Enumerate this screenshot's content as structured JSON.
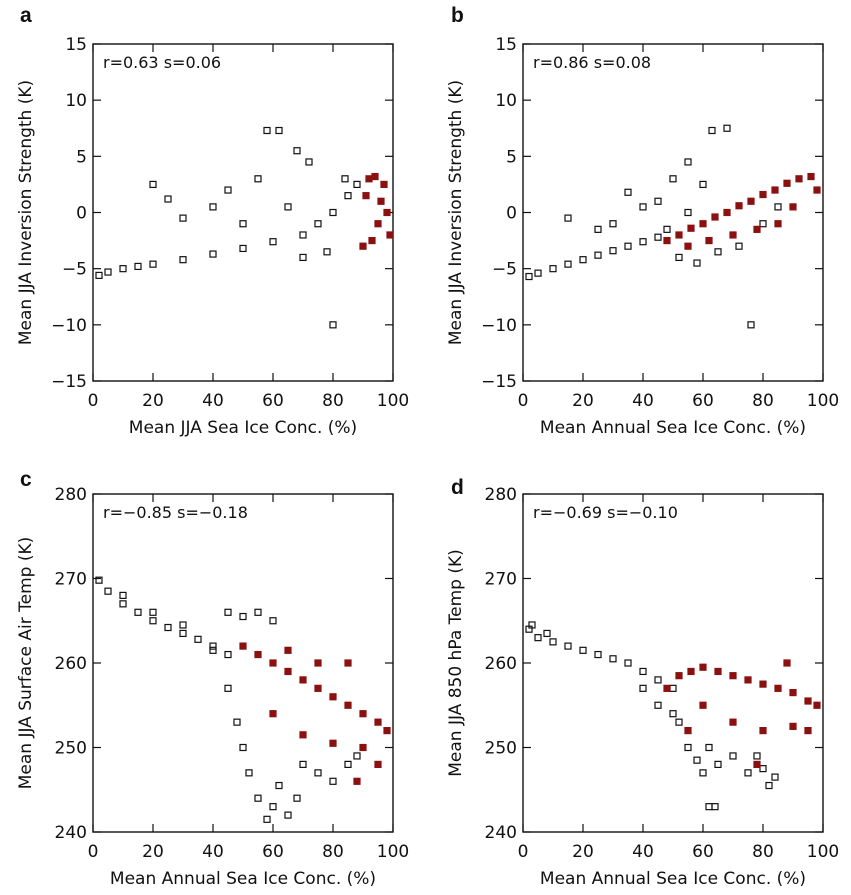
{
  "chart_data": [
    {
      "panel": "a",
      "type": "scatter",
      "stats": "r=0.63   s=0.06",
      "xlabel": "Mean JJA Sea Ice Conc. (%)",
      "ylabel": "Mean JJA Inversion Strength (K)",
      "xlim": [
        0,
        100
      ],
      "ylim": [
        -15,
        15
      ],
      "xticks": [
        "0",
        "20",
        "40",
        "60",
        "80",
        "100"
      ],
      "yticks": [
        "-15",
        "-10",
        "-5",
        "0",
        "5",
        "10",
        "15"
      ],
      "colors": {
        "main": "#111111",
        "highlight": "#8b1010"
      },
      "series": [
        {
          "values": [
            [
              2,
              -5.6
            ],
            [
              5,
              -5.3
            ],
            [
              10,
              -5.0
            ],
            [
              15,
              -4.8
            ],
            [
              20,
              -4.6
            ],
            [
              30,
              -4.2
            ],
            [
              40,
              -3.7
            ],
            [
              50,
              -3.2
            ],
            [
              60,
              -2.6
            ],
            [
              70,
              -2.0
            ],
            [
              75,
              -1.0
            ],
            [
              80,
              0.0
            ],
            [
              85,
              1.5
            ],
            [
              88,
              2.5
            ],
            [
              20,
              2.5
            ],
            [
              25,
              1.2
            ],
            [
              30,
              -0.5
            ],
            [
              40,
              0.5
            ],
            [
              45,
              2.0
            ],
            [
              55,
              3.0
            ],
            [
              58,
              7.3
            ],
            [
              62,
              7.3
            ],
            [
              68,
              5.5
            ],
            [
              72,
              4.5
            ],
            [
              80,
              -10.0
            ],
            [
              50,
              -1.0
            ],
            [
              65,
              0.5
            ],
            [
              70,
              -4.0
            ],
            [
              78,
              -3.5
            ],
            [
              84,
              3.0
            ]
          ]
        },
        {
          "values": [
            [
              90,
              -3.0
            ],
            [
              92,
              3.0
            ],
            [
              95,
              -1.0
            ],
            [
              97,
              2.5
            ],
            [
              98,
              0.0
            ],
            [
              99,
              -2.0
            ],
            [
              96,
              1.0
            ],
            [
              93,
              -2.5
            ],
            [
              91,
              1.5
            ],
            [
              94,
              3.2
            ]
          ]
        }
      ]
    },
    {
      "panel": "b",
      "type": "scatter",
      "stats": "r=0.86   s=0.08",
      "xlabel": "Mean Annual Sea Ice Conc. (%)",
      "ylabel": "Mean JJA Inversion Strength (K)",
      "xlim": [
        0,
        100
      ],
      "ylim": [
        -15,
        15
      ],
      "xticks": [
        "0",
        "20",
        "40",
        "60",
        "80",
        "100"
      ],
      "yticks": [
        "-15",
        "-10",
        "-5",
        "0",
        "5",
        "10",
        "15"
      ],
      "colors": {
        "main": "#111111",
        "highlight": "#8b1010"
      },
      "series": [
        {
          "values": [
            [
              2,
              -5.7
            ],
            [
              5,
              -5.4
            ],
            [
              10,
              -5.0
            ],
            [
              15,
              -4.6
            ],
            [
              20,
              -4.2
            ],
            [
              25,
              -3.8
            ],
            [
              30,
              -3.4
            ],
            [
              35,
              -3.0
            ],
            [
              40,
              -2.6
            ],
            [
              45,
              -2.2
            ],
            [
              15,
              -0.5
            ],
            [
              25,
              -1.5
            ],
            [
              30,
              -1.0
            ],
            [
              35,
              1.8
            ],
            [
              40,
              0.5
            ],
            [
              45,
              1.0
            ],
            [
              50,
              3.0
            ],
            [
              52,
              -4.0
            ],
            [
              55,
              4.5
            ],
            [
              58,
              -4.5
            ],
            [
              60,
              2.5
            ],
            [
              63,
              7.3
            ],
            [
              65,
              -3.5
            ],
            [
              68,
              7.5
            ],
            [
              72,
              -3.0
            ],
            [
              76,
              -10.0
            ],
            [
              80,
              -1.0
            ],
            [
              85,
              0.5
            ],
            [
              55,
              0.0
            ],
            [
              48,
              -1.5
            ]
          ]
        },
        {
          "values": [
            [
              48,
              -2.5
            ],
            [
              52,
              -2.0
            ],
            [
              56,
              -1.4
            ],
            [
              60,
              -1.0
            ],
            [
              64,
              -0.4
            ],
            [
              68,
              0.0
            ],
            [
              72,
              0.6
            ],
            [
              76,
              1.0
            ],
            [
              80,
              1.6
            ],
            [
              84,
              2.0
            ],
            [
              88,
              2.6
            ],
            [
              92,
              3.0
            ],
            [
              96,
              3.2
            ],
            [
              98,
              2.0
            ],
            [
              90,
              0.5
            ],
            [
              85,
              -1.0
            ],
            [
              78,
              -1.5
            ],
            [
              70,
              -2.0
            ],
            [
              62,
              -2.5
            ],
            [
              55,
              -3.0
            ]
          ]
        }
      ]
    },
    {
      "panel": "c",
      "type": "scatter",
      "stats": "r=−0.85   s=−0.18",
      "xlabel": "Mean Annual Sea Ice Conc. (%)",
      "ylabel": "Mean JJA Surface Air Temp (K)",
      "xlim": [
        0,
        100
      ],
      "ylim": [
        240,
        280
      ],
      "xticks": [
        "0",
        "20",
        "40",
        "60",
        "80",
        "100"
      ],
      "yticks": [
        "240",
        "250",
        "260",
        "270",
        "280"
      ],
      "colors": {
        "main": "#111111",
        "highlight": "#8b1010"
      },
      "series": [
        {
          "values": [
            [
              2,
              269.8
            ],
            [
              5,
              268.5
            ],
            [
              10,
              267.0
            ],
            [
              15,
              266.0
            ],
            [
              20,
              265.0
            ],
            [
              25,
              264.2
            ],
            [
              30,
              263.5
            ],
            [
              35,
              262.8
            ],
            [
              40,
              262.0
            ],
            [
              45,
              261.0
            ],
            [
              10,
              268.0
            ],
            [
              20,
              266.0
            ],
            [
              30,
              264.5
            ],
            [
              40,
              261.5
            ],
            [
              45,
              257.0
            ],
            [
              48,
              253.0
            ],
            [
              50,
              250.0
            ],
            [
              52,
              247.0
            ],
            [
              55,
              244.0
            ],
            [
              58,
              241.5
            ],
            [
              60,
              243.0
            ],
            [
              62,
              245.5
            ],
            [
              65,
              242.0
            ],
            [
              68,
              244.0
            ],
            [
              70,
              248.0
            ],
            [
              75,
              247.0
            ],
            [
              80,
              246.0
            ],
            [
              85,
              248.0
            ],
            [
              88,
              249.0
            ],
            [
              60,
              265.0
            ],
            [
              55,
              266.0
            ],
            [
              50,
              265.5
            ],
            [
              45,
              266.0
            ]
          ]
        },
        {
          "values": [
            [
              50,
              262.0
            ],
            [
              55,
              261.0
            ],
            [
              60,
              260.0
            ],
            [
              65,
              259.0
            ],
            [
              70,
              258.0
            ],
            [
              75,
              257.0
            ],
            [
              80,
              256.0
            ],
            [
              85,
              255.0
            ],
            [
              90,
              254.0
            ],
            [
              95,
              253.0
            ],
            [
              98,
              252.0
            ],
            [
              60,
              254.0
            ],
            [
              70,
              251.5
            ],
            [
              80,
              250.5
            ],
            [
              90,
              250.0
            ],
            [
              85,
              260.0
            ],
            [
              75,
              260.0
            ],
            [
              65,
              261.5
            ],
            [
              95,
              248.0
            ],
            [
              88,
              246.0
            ]
          ]
        }
      ]
    },
    {
      "panel": "d",
      "type": "scatter",
      "stats": "r=−0.69   s=−0.10",
      "xlabel": "Mean Annual Sea Ice Conc. (%)",
      "ylabel": "Mean JJA 850 hPa Temp (K)",
      "xlim": [
        0,
        100
      ],
      "ylim": [
        240,
        280
      ],
      "xticks": [
        "0",
        "20",
        "40",
        "60",
        "80",
        "100"
      ],
      "yticks": [
        "240",
        "250",
        "260",
        "270",
        "280"
      ],
      "colors": {
        "main": "#111111",
        "highlight": "#8b1010"
      },
      "series": [
        {
          "values": [
            [
              2,
              264.0
            ],
            [
              5,
              263.0
            ],
            [
              10,
              262.5
            ],
            [
              15,
              262.0
            ],
            [
              20,
              261.5
            ],
            [
              25,
              261.0
            ],
            [
              30,
              260.5
            ],
            [
              35,
              260.0
            ],
            [
              40,
              259.0
            ],
            [
              45,
              258.0
            ],
            [
              50,
              257.0
            ],
            [
              52,
              253.0
            ],
            [
              55,
              250.0
            ],
            [
              58,
              248.5
            ],
            [
              60,
              247.0
            ],
            [
              62,
              250.0
            ],
            [
              65,
              248.0
            ],
            [
              70,
              249.0
            ],
            [
              75,
              247.0
            ],
            [
              78,
              249.0
            ],
            [
              80,
              247.5
            ],
            [
              62,
              243.0
            ],
            [
              64,
              243.0
            ],
            [
              82,
              245.5
            ],
            [
              84,
              246.5
            ],
            [
              45,
              255.0
            ],
            [
              40,
              257.0
            ],
            [
              50,
              254.0
            ],
            [
              3,
              264.5
            ],
            [
              8,
              263.5
            ]
          ]
        },
        {
          "values": [
            [
              48,
              257.0
            ],
            [
              52,
              258.5
            ],
            [
              56,
              259.0
            ],
            [
              60,
              259.5
            ],
            [
              65,
              259.0
            ],
            [
              70,
              258.5
            ],
            [
              75,
              258.0
            ],
            [
              80,
              257.5
            ],
            [
              85,
              257.0
            ],
            [
              90,
              256.5
            ],
            [
              95,
              255.5
            ],
            [
              98,
              255.0
            ],
            [
              60,
              255.0
            ],
            [
              70,
              253.0
            ],
            [
              80,
              252.0
            ],
            [
              90,
              252.5
            ],
            [
              95,
              252.0
            ],
            [
              78,
              248.0
            ],
            [
              88,
              260.0
            ],
            [
              55,
              252.0
            ]
          ]
        }
      ]
    }
  ]
}
